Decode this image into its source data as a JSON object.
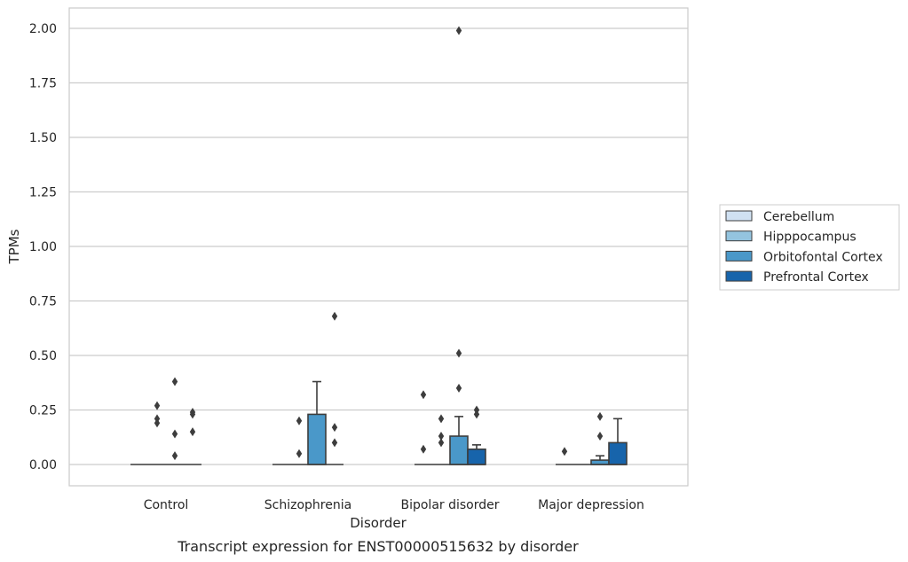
{
  "caption": "Transcript expression for ENST00000515632 by disorder",
  "chart_data": {
    "type": "box",
    "xlabel": "Disorder",
    "ylabel": "TPMs",
    "ylim": [
      -0.1,
      2.1
    ],
    "yticks": [
      0.0,
      0.25,
      0.5,
      0.75,
      1.0,
      1.25,
      1.5,
      1.75,
      2.0
    ],
    "ytick_labels": [
      "0.00",
      "0.25",
      "0.50",
      "0.75",
      "1.00",
      "1.25",
      "1.50",
      "1.75",
      "2.00"
    ],
    "grid": "horizontal",
    "legend_position": "right",
    "categories": [
      "Control",
      "Schizophrenia",
      "Bipolar disorder",
      "Major depression"
    ],
    "series": [
      {
        "name": "Cerebellum",
        "color": "#d0e1f2",
        "boxes": [
          {
            "q1": 0,
            "median": 0,
            "q3": 0,
            "whislo": 0,
            "whishi": 0,
            "fliers": []
          },
          {
            "q1": 0,
            "median": 0,
            "q3": 0,
            "whislo": 0,
            "whishi": 0,
            "fliers": []
          },
          {
            "q1": 0,
            "median": 0,
            "q3": 0,
            "whislo": 0,
            "whishi": 0,
            "fliers": [
              0.32,
              0.07
            ]
          },
          {
            "q1": 0,
            "median": 0,
            "q3": 0,
            "whislo": 0,
            "whishi": 0,
            "fliers": [
              0.06
            ]
          }
        ]
      },
      {
        "name": "Hipppocampus",
        "color": "#94c4df",
        "boxes": [
          {
            "q1": 0,
            "median": 0,
            "q3": 0,
            "whislo": 0,
            "whishi": 0,
            "fliers": [
              0.21,
              0.27,
              0.19
            ]
          },
          {
            "q1": 0,
            "median": 0,
            "q3": 0,
            "whislo": 0,
            "whishi": 0,
            "fliers": [
              0.2,
              0.05
            ]
          },
          {
            "q1": 0,
            "median": 0,
            "q3": 0,
            "whislo": 0,
            "whishi": 0,
            "fliers": [
              0.21,
              0.13,
              0.1
            ]
          },
          {
            "q1": 0,
            "median": 0,
            "q3": 0,
            "whislo": 0,
            "whishi": 0,
            "fliers": []
          }
        ]
      },
      {
        "name": "Orbitofontal Cortex",
        "color": "#4a98c9",
        "boxes": [
          {
            "q1": 0,
            "median": 0,
            "q3": 0,
            "whislo": 0,
            "whishi": 0,
            "fliers": [
              0.38,
              0.14,
              0.04
            ]
          },
          {
            "q1": 0,
            "median": 0,
            "q3": 0.23,
            "whislo": 0,
            "whishi": 0.38,
            "fliers": []
          },
          {
            "q1": 0,
            "median": 0,
            "q3": 0.13,
            "whislo": 0,
            "whishi": 0.22,
            "fliers": [
              0.51,
              0.35,
              1.99
            ]
          },
          {
            "q1": 0,
            "median": 0,
            "q3": 0.02,
            "whislo": 0,
            "whishi": 0.04,
            "fliers": [
              0.22,
              0.13
            ]
          }
        ]
      },
      {
        "name": "Prefrontal Cortex",
        "color": "#1764ab",
        "boxes": [
          {
            "q1": 0,
            "median": 0,
            "q3": 0,
            "whislo": 0,
            "whishi": 0,
            "fliers": [
              0.24,
              0.23,
              0.15
            ]
          },
          {
            "q1": 0,
            "median": 0,
            "q3": 0,
            "whislo": 0,
            "whishi": 0,
            "fliers": [
              0.68,
              0.17,
              0.1
            ]
          },
          {
            "q1": 0,
            "median": 0,
            "q3": 0.07,
            "whislo": 0,
            "whishi": 0.09,
            "fliers": [
              0.25,
              0.23
            ]
          },
          {
            "q1": 0,
            "median": 0,
            "q3": 0.1,
            "whislo": 0,
            "whishi": 0.21,
            "fliers": []
          }
        ]
      }
    ]
  }
}
